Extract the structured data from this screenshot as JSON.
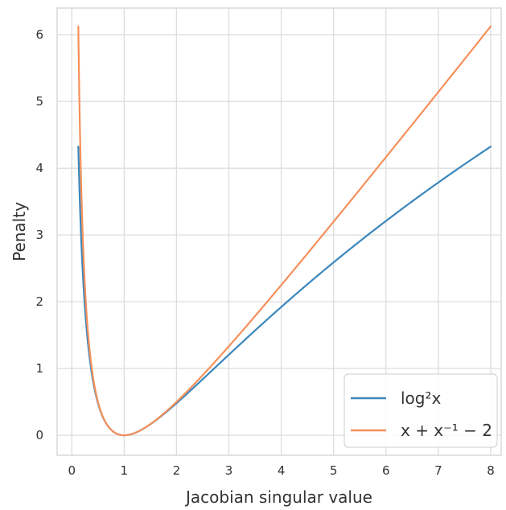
{
  "chart_data": {
    "type": "line",
    "xlabel": "Jacobian singular value",
    "ylabel": "Penalty",
    "xlim": [
      -0.28,
      8.2
    ],
    "ylim": [
      -0.3,
      6.4
    ],
    "x_ticks": [
      0,
      1,
      2,
      3,
      4,
      5,
      6,
      7,
      8
    ],
    "y_ticks": [
      0,
      1,
      2,
      3,
      4,
      5,
      6
    ],
    "grid": true,
    "legend_position": "bottom-right",
    "series": [
      {
        "name": "log²x",
        "formula": "log2",
        "color": "#3a87bd",
        "x": [
          0.125,
          0.15,
          0.2,
          0.25,
          0.3,
          0.4,
          0.5,
          0.6,
          0.7,
          0.8,
          0.9,
          1.0,
          1.25,
          1.5,
          2,
          2.5,
          3,
          3.5,
          4,
          4.5,
          5,
          5.5,
          6,
          6.5,
          7,
          7.5,
          8
        ],
        "y": [
          4.324,
          3.599,
          2.59,
          1.922,
          1.45,
          0.84,
          0.48,
          0.261,
          0.127,
          0.05,
          0.011,
          0.0,
          0.05,
          0.164,
          0.48,
          0.84,
          1.207,
          1.569,
          1.922,
          2.262,
          2.59,
          2.906,
          3.21,
          3.504,
          3.787,
          4.06,
          4.324
        ]
      },
      {
        "name": "x + x⁻¹ − 2",
        "formula": "inv",
        "color": "#f5905a",
        "x": [
          0.125,
          0.15,
          0.2,
          0.25,
          0.3,
          0.4,
          0.5,
          0.6,
          0.7,
          0.8,
          0.9,
          1.0,
          1.25,
          1.5,
          2,
          2.5,
          3,
          3.5,
          4,
          4.5,
          5,
          5.5,
          6,
          6.5,
          7,
          7.5,
          8
        ],
        "y": [
          6.125,
          4.817,
          3.2,
          2.25,
          1.633,
          0.9,
          0.5,
          0.267,
          0.129,
          0.05,
          0.011,
          0.0,
          0.05,
          0.167,
          0.5,
          0.9,
          1.333,
          1.786,
          2.25,
          2.722,
          3.2,
          3.682,
          4.167,
          4.654,
          5.143,
          5.633,
          6.125
        ]
      }
    ]
  }
}
